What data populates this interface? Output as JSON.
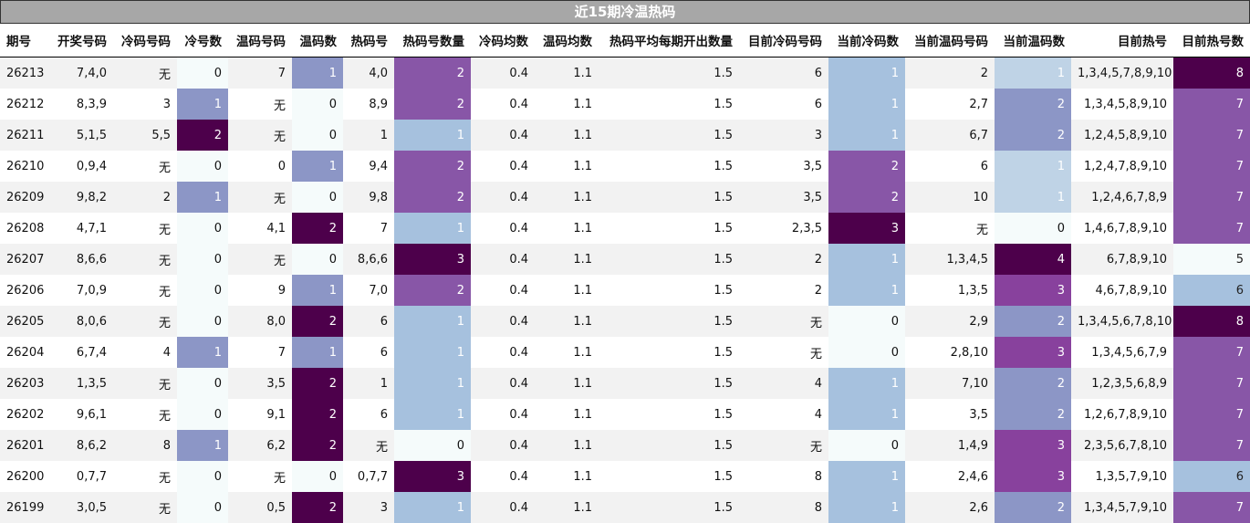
{
  "title": "近15期冷温热码",
  "columns": [
    "期号",
    "开奖号码",
    "冷码号码",
    "冷号数",
    "温码号码",
    "温码数",
    "热码号",
    "热码号数量",
    "冷码均数",
    "温码均数",
    "热码平均每期开出数量",
    "目前冷码号码",
    "当前冷码数",
    "当前温码号码",
    "当前温码数",
    "目前热号",
    "目前热号数"
  ],
  "rows": [
    [
      "26213",
      "7,4,0",
      "无",
      "0",
      "7",
      "1",
      "4,0",
      "2",
      "0.4",
      "1.1",
      "1.5",
      "6",
      "1",
      "2",
      "1",
      "1,3,4,5,7,8,9,10",
      "8"
    ],
    [
      "26212",
      "8,3,9",
      "3",
      "1",
      "无",
      "0",
      "8,9",
      "2",
      "0.4",
      "1.1",
      "1.5",
      "6",
      "1",
      "2,7",
      "2",
      "1,3,4,5,8,9,10",
      "7"
    ],
    [
      "26211",
      "5,1,5",
      "5,5",
      "2",
      "无",
      "0",
      "1",
      "1",
      "0.4",
      "1.1",
      "1.5",
      "3",
      "1",
      "6,7",
      "2",
      "1,2,4,5,8,9,10",
      "7"
    ],
    [
      "26210",
      "0,9,4",
      "无",
      "0",
      "0",
      "1",
      "9,4",
      "2",
      "0.4",
      "1.1",
      "1.5",
      "3,5",
      "2",
      "6",
      "1",
      "1,2,4,7,8,9,10",
      "7"
    ],
    [
      "26209",
      "9,8,2",
      "2",
      "1",
      "无",
      "0",
      "9,8",
      "2",
      "0.4",
      "1.1",
      "1.5",
      "3,5",
      "2",
      "10",
      "1",
      "1,2,4,6,7,8,9",
      "7"
    ],
    [
      "26208",
      "4,7,1",
      "无",
      "0",
      "4,1",
      "2",
      "7",
      "1",
      "0.4",
      "1.1",
      "1.5",
      "2,3,5",
      "3",
      "无",
      "0",
      "1,4,6,7,8,9,10",
      "7"
    ],
    [
      "26207",
      "8,6,6",
      "无",
      "0",
      "无",
      "0",
      "8,6,6",
      "3",
      "0.4",
      "1.1",
      "1.5",
      "2",
      "1",
      "1,3,4,5",
      "4",
      "6,7,8,9,10",
      "5"
    ],
    [
      "26206",
      "7,0,9",
      "无",
      "0",
      "9",
      "1",
      "7,0",
      "2",
      "0.4",
      "1.1",
      "1.5",
      "2",
      "1",
      "1,3,5",
      "3",
      "4,6,7,8,9,10",
      "6"
    ],
    [
      "26205",
      "8,0,6",
      "无",
      "0",
      "8,0",
      "2",
      "6",
      "1",
      "0.4",
      "1.1",
      "1.5",
      "无",
      "0",
      "2,9",
      "2",
      "1,3,4,5,6,7,8,10",
      "8"
    ],
    [
      "26204",
      "6,7,4",
      "4",
      "1",
      "7",
      "1",
      "6",
      "1",
      "0.4",
      "1.1",
      "1.5",
      "无",
      "0",
      "2,8,10",
      "3",
      "1,3,4,5,6,7,9",
      "7"
    ],
    [
      "26203",
      "1,3,5",
      "无",
      "0",
      "3,5",
      "2",
      "1",
      "1",
      "0.4",
      "1.1",
      "1.5",
      "4",
      "1",
      "7,10",
      "2",
      "1,2,3,5,6,8,9",
      "7"
    ],
    [
      "26202",
      "9,6,1",
      "无",
      "0",
      "9,1",
      "2",
      "6",
      "1",
      "0.4",
      "1.1",
      "1.5",
      "4",
      "1",
      "3,5",
      "2",
      "1,2,6,7,8,9,10",
      "7"
    ],
    [
      "26201",
      "8,6,2",
      "8",
      "1",
      "6,2",
      "2",
      "无",
      "0",
      "0.4",
      "1.1",
      "1.5",
      "无",
      "0",
      "1,4,9",
      "3",
      "2,3,5,6,7,8,10",
      "7"
    ],
    [
      "26200",
      "0,7,7",
      "无",
      "0",
      "无",
      "0",
      "0,7,7",
      "3",
      "0.4",
      "1.1",
      "1.5",
      "8",
      "1",
      "2,4,6",
      "3",
      "1,3,5,7,9,10",
      "6"
    ],
    [
      "26199",
      "3,0,5",
      "无",
      "0",
      "0,5",
      "2",
      "3",
      "1",
      "0.4",
      "1.1",
      "1.5",
      "8",
      "1",
      "2,6",
      "2",
      "1,3,4,5,7,9,10",
      "7"
    ]
  ]
}
